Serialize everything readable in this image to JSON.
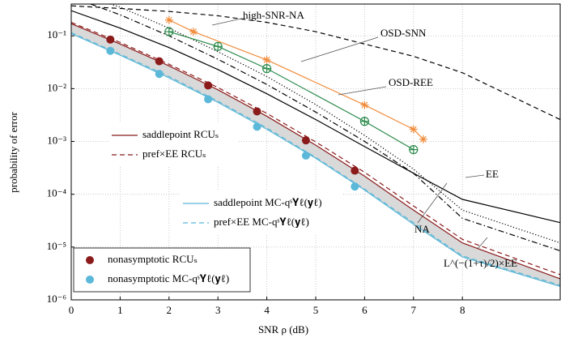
{
  "chart_data": {
    "type": "line",
    "log_y": true,
    "grid": true,
    "xlabel": "SNR ρ (dB)",
    "ylabel": "probability of error",
    "xlim": [
      0,
      10
    ],
    "xticks": [
      0,
      1,
      2,
      3,
      4,
      5,
      6,
      7,
      8
    ],
    "ylim": [
      1e-06,
      0.4
    ],
    "yticks": [
      {
        "value": 1e-06,
        "label": "10⁻⁶"
      },
      {
        "value": 1e-05,
        "label": "10⁻⁵"
      },
      {
        "value": 0.0001,
        "label": "10⁻⁴"
      },
      {
        "value": 0.001,
        "label": "10⁻³"
      },
      {
        "value": 0.01,
        "label": "10⁻²"
      },
      {
        "value": 0.1,
        "label": "10⁻¹"
      }
    ],
    "fill_between": {
      "series": [
        0,
        2
      ],
      "color": "#d9d9d9"
    },
    "series": [
      {
        "name": "saddlepoint RCUₛ",
        "color": "#8b1a1a",
        "line": "solid",
        "marker": "none",
        "x": [
          0,
          1,
          2,
          3,
          4,
          5,
          6,
          7,
          8,
          10
        ],
        "values": [
          0.17,
          0.07,
          0.027,
          0.0095,
          0.003,
          0.00085,
          0.00022,
          5e-05,
          1.2e-05,
          2.5e-06
        ]
      },
      {
        "name": "pref×EE RCUₛ",
        "color": "#8b1a1a",
        "line": "dashed",
        "marker": "none",
        "x": [
          0,
          1,
          2,
          3,
          4,
          5,
          6,
          7,
          8,
          10
        ],
        "values": [
          0.18,
          0.075,
          0.029,
          0.0105,
          0.0034,
          0.00098,
          0.00026,
          6e-05,
          1.4e-05,
          3e-06
        ]
      },
      {
        "name": "saddlepoint MC-qˢ𝐘ℓ(𝐲ℓ)",
        "color": "#5bb8d8",
        "line": "solid",
        "marker": "none",
        "x": [
          0,
          1,
          2,
          3,
          4,
          5,
          6,
          7,
          8,
          10
        ],
        "values": [
          0.11,
          0.043,
          0.016,
          0.0055,
          0.0017,
          0.00048,
          0.00012,
          2.7e-05,
          6.5e-06,
          1.8e-06
        ]
      },
      {
        "name": "pref×EE MC-qˢ𝐘ℓ(𝐲ℓ)",
        "color": "#5bb8d8",
        "line": "dashed",
        "marker": "none",
        "x": [
          0,
          1,
          2,
          3,
          4,
          5,
          6,
          7,
          8,
          10
        ],
        "values": [
          0.115,
          0.045,
          0.017,
          0.0058,
          0.0018,
          0.0005,
          0.000125,
          2.9e-05,
          6.8e-06,
          1.9e-06
        ]
      },
      {
        "name": "nonasymptotic RCUₛ",
        "color": "#8b1a1a",
        "line": "none",
        "marker": "circle",
        "x": [
          0.8,
          1.8,
          2.8,
          3.8,
          4.8,
          5.8
        ],
        "values": [
          0.085,
          0.033,
          0.0115,
          0.0037,
          0.00105,
          0.00028
        ]
      },
      {
        "name": "nonasymptotic MC-qˢ𝐘ℓ(𝐲ℓ)",
        "color": "#5bb8d8",
        "line": "none",
        "marker": "circle",
        "x": [
          0.8,
          1.8,
          2.8,
          3.8,
          4.8,
          5.8
        ],
        "values": [
          0.052,
          0.019,
          0.0063,
          0.0019,
          0.00054,
          0.00014
        ]
      },
      {
        "name": "NA",
        "color": "#000000",
        "line": "solid",
        "marker": "none",
        "x": [
          0,
          1,
          2,
          3,
          4,
          5,
          6,
          7,
          8,
          10
        ],
        "values": [
          0.3,
          0.14,
          0.06,
          0.023,
          0.008,
          0.0026,
          0.0008,
          0.00025,
          8e-05,
          2.9e-05
        ]
      },
      {
        "name": "EE",
        "color": "#000000",
        "line": "dotted",
        "marker": "none",
        "x": [
          0.8,
          1,
          2,
          3,
          4,
          5,
          6,
          7,
          8,
          10
        ],
        "values": [
          0.4,
          0.35,
          0.14,
          0.05,
          0.017,
          0.005,
          0.0013,
          0.0003,
          5e-05,
          1.2e-05
        ]
      },
      {
        "name": "L^(−(1+τ)/2)×EE",
        "color": "#000000",
        "line": "dashdot",
        "marker": "none",
        "x": [
          0.4,
          1,
          2,
          3,
          4,
          5,
          6,
          7,
          8,
          10
        ],
        "values": [
          0.4,
          0.25,
          0.1,
          0.036,
          0.012,
          0.0036,
          0.001,
          0.00025,
          3.5e-05,
          8.5e-06
        ]
      },
      {
        "name": "high-SNR-NA",
        "color": "#000000",
        "line": "dashed",
        "marker": "none",
        "x": [
          0,
          1,
          2,
          3,
          4,
          5,
          6,
          7,
          8,
          10
        ],
        "values": [
          0.37,
          0.33,
          0.29,
          0.24,
          0.18,
          0.12,
          0.07,
          0.041,
          0.02,
          0.0026
        ]
      },
      {
        "name": "OSD-SNN",
        "color": "#f08c3c",
        "line": "solid",
        "marker": "star",
        "x": [
          2,
          2.5,
          4,
          6,
          7,
          7.2
        ],
        "values": [
          0.2,
          0.12,
          0.035,
          0.0049,
          0.0017,
          0.0011
        ]
      },
      {
        "name": "OSD-REE",
        "color": "#2a8a4a",
        "line": "solid",
        "marker": "oplus",
        "x": [
          2,
          3,
          4,
          6,
          7
        ],
        "values": [
          0.12,
          0.063,
          0.024,
          0.0024,
          0.0007
        ]
      }
    ]
  }
}
